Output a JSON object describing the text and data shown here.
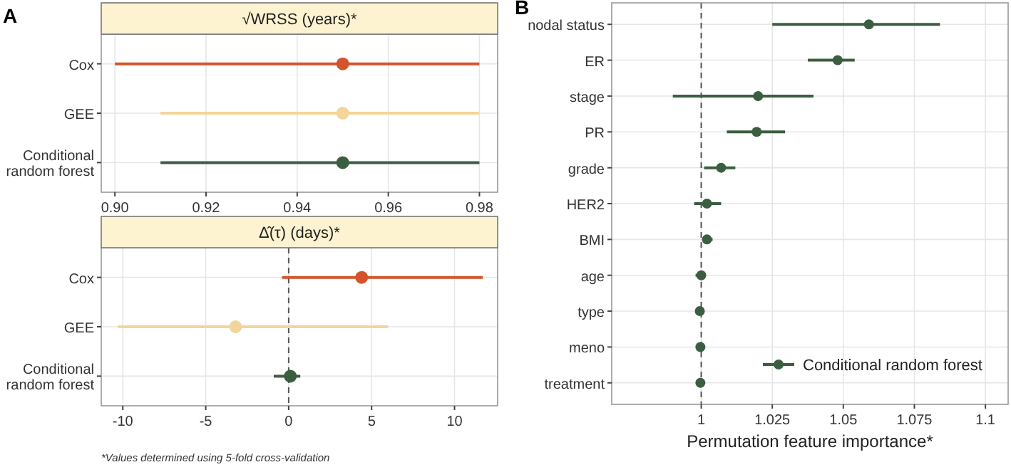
{
  "chart_data": [
    {
      "type": "scatter",
      "orientation": "horizontal",
      "title": "√WRSS (years)*",
      "categories": [
        "Cox",
        "GEE",
        "Conditional random forest"
      ],
      "series": [
        {
          "values": [
            0.95,
            0.95,
            0.95
          ],
          "colors": [
            "#d4552b",
            "#f3d59a",
            "#3b5e40"
          ],
          "errors": [
            [
              0.9,
              0.98
            ],
            [
              0.91,
              0.98
            ],
            [
              0.91,
              0.98
            ]
          ]
        }
      ],
      "xlim": [
        0.897,
        0.984
      ],
      "xticks": [
        {
          "value": 0.9,
          "label": "0.90"
        },
        0.92,
        0.94,
        0.96,
        0.98
      ],
      "grid": true,
      "marker": "circle",
      "annotations": [
        "A"
      ]
    },
    {
      "type": "scatter",
      "orientation": "horizontal",
      "title": "Δ̂(τ) (days)*",
      "categories": [
        "Cox",
        "GEE",
        "Conditional random forest"
      ],
      "series": [
        {
          "values": [
            4.4,
            -3.2,
            0.1
          ],
          "colors": [
            "#d4552b",
            "#f3d59a",
            "#3b5e40"
          ],
          "errors": [
            [
              -0.4,
              11.7
            ],
            [
              -10.3,
              6.0
            ],
            [
              -0.9,
              0.7
            ]
          ]
        }
      ],
      "xlim": [
        -11.3,
        12.6
      ],
      "xticks": [
        -10,
        -5,
        0,
        5,
        10
      ],
      "grid": true,
      "marker": "circle",
      "ref_lines": [
        {
          "axis": "x",
          "value": 0,
          "line_style": "dashed",
          "color": "#555555"
        }
      ],
      "annotations": [
        "*Values determined using 5-fold cross-validation"
      ]
    },
    {
      "type": "scatter",
      "orientation": "horizontal",
      "xlabel": "Permutation feature importance*",
      "categories": [
        "nodal status",
        "ER",
        "stage",
        "PR",
        "grade",
        "HER2",
        "BMI",
        "age",
        "type",
        "meno",
        "treatment"
      ],
      "series": [
        {
          "name": "Conditional random forest",
          "color": "#3b5e40",
          "values": [
            1.059,
            1.048,
            1.02,
            1.0195,
            1.007,
            1.002,
            1.002,
            1.0,
            0.9995,
            0.9997,
            0.9997
          ],
          "errors": [
            [
              1.025,
              1.084
            ],
            [
              1.0375,
              1.054
            ],
            [
              0.99,
              1.0395
            ],
            [
              1.009,
              1.0295
            ],
            [
              1.001,
              1.012
            ],
            [
              0.9975,
              1.007
            ],
            [
              1.001,
              1.004
            ],
            [
              0.998,
              1.0015
            ],
            [
              0.999,
              0.9998
            ],
            [
              0.9993,
              1.0
            ],
            [
              0.9992,
              1.0002
            ]
          ]
        }
      ],
      "xlim": [
        0.9685,
        1.108
      ],
      "xticks": [
        1,
        1.025,
        1.05,
        1.075,
        1.1
      ],
      "grid": true,
      "marker": "circle",
      "legend": "bottom right",
      "ref_lines": [
        {
          "axis": "x",
          "value": 1,
          "line_style": "dashed",
          "color": "#555555"
        }
      ],
      "annotations": [
        "B"
      ]
    }
  ]
}
